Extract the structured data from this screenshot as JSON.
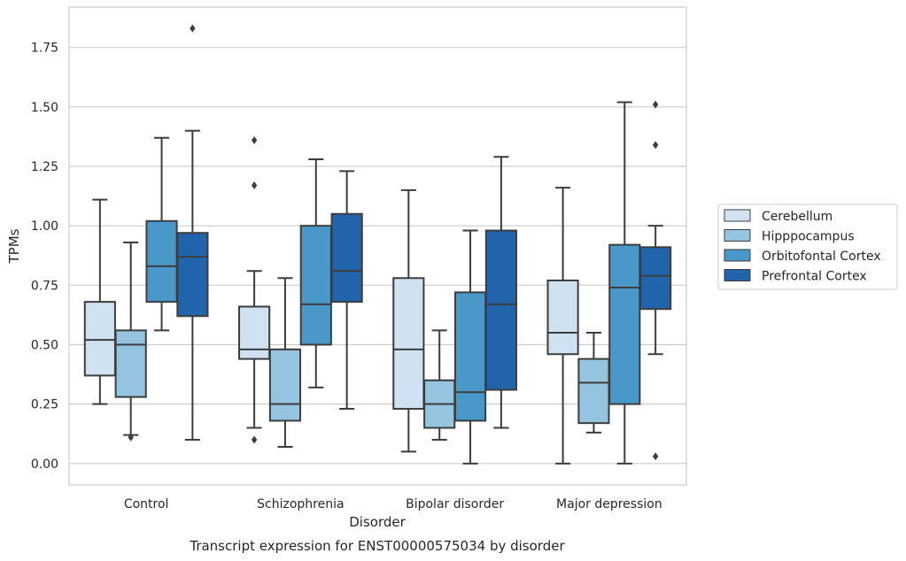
{
  "chart_data": {
    "type": "boxplot",
    "title": "Transcript expression for ENST00000575034 by disorder",
    "xlabel": "Disorder",
    "ylabel": "TPMs",
    "ylim": [
      -0.09,
      1.92
    ],
    "yticks": [
      0.0,
      0.25,
      0.5,
      0.75,
      1.0,
      1.25,
      1.5,
      1.75
    ],
    "ytick_labels": [
      "0.00",
      "0.25",
      "0.50",
      "0.75",
      "1.00",
      "1.25",
      "1.50",
      "1.75"
    ],
    "grid": "horizontal",
    "legend_placement": "right",
    "categories": [
      "Control",
      "Schizophrenia",
      "Bipolar disorder",
      "Major depression"
    ],
    "series": [
      {
        "name": "Cerebellum",
        "color": "#d0e1f2",
        "boxes": [
          {
            "whislo": 0.25,
            "q1": 0.37,
            "med": 0.52,
            "q3": 0.68,
            "whishi": 1.11,
            "fliers": []
          },
          {
            "whislo": 0.15,
            "q1": 0.44,
            "med": 0.48,
            "q3": 0.66,
            "whishi": 0.81,
            "fliers": [
              0.1,
              1.17,
              1.36
            ]
          },
          {
            "whislo": 0.05,
            "q1": 0.23,
            "med": 0.48,
            "q3": 0.78,
            "whishi": 1.15,
            "fliers": []
          },
          {
            "whislo": 0.0,
            "q1": 0.46,
            "med": 0.55,
            "q3": 0.77,
            "whishi": 1.16,
            "fliers": []
          }
        ]
      },
      {
        "name": "Hipppocampus",
        "color": "#94c4df",
        "boxes": [
          {
            "whislo": 0.12,
            "q1": 0.28,
            "med": 0.5,
            "q3": 0.56,
            "whishi": 0.93,
            "fliers": [
              0.11
            ]
          },
          {
            "whislo": 0.07,
            "q1": 0.18,
            "med": 0.25,
            "q3": 0.48,
            "whishi": 0.78,
            "fliers": []
          },
          {
            "whislo": 0.1,
            "q1": 0.15,
            "med": 0.25,
            "q3": 0.35,
            "whishi": 0.56,
            "fliers": []
          },
          {
            "whislo": 0.13,
            "q1": 0.17,
            "med": 0.34,
            "q3": 0.44,
            "whishi": 0.55,
            "fliers": []
          }
        ]
      },
      {
        "name": "Orbitofontal Cortex",
        "color": "#4a98c9",
        "boxes": [
          {
            "whislo": 0.56,
            "q1": 0.68,
            "med": 0.83,
            "q3": 1.02,
            "whishi": 1.37,
            "fliers": []
          },
          {
            "whislo": 0.32,
            "q1": 0.5,
            "med": 0.67,
            "q3": 1.0,
            "whishi": 1.28,
            "fliers": []
          },
          {
            "whislo": 0.0,
            "q1": 0.18,
            "med": 0.3,
            "q3": 0.72,
            "whishi": 0.98,
            "fliers": []
          },
          {
            "whislo": 0.0,
            "q1": 0.25,
            "med": 0.74,
            "q3": 0.92,
            "whishi": 1.52,
            "fliers": []
          }
        ]
      },
      {
        "name": "Prefrontal Cortex",
        "color": "#2164ab",
        "boxes": [
          {
            "whislo": 0.1,
            "q1": 0.62,
            "med": 0.87,
            "q3": 0.97,
            "whishi": 1.4,
            "fliers": [
              1.83
            ]
          },
          {
            "whislo": 0.23,
            "q1": 0.68,
            "med": 0.81,
            "q3": 1.05,
            "whishi": 1.23,
            "fliers": []
          },
          {
            "whislo": 0.15,
            "q1": 0.31,
            "med": 0.67,
            "q3": 0.98,
            "whishi": 1.29,
            "fliers": []
          },
          {
            "whislo": 0.46,
            "q1": 0.65,
            "med": 0.79,
            "q3": 0.91,
            "whishi": 1.0,
            "fliers": [
              0.03,
              1.34,
              1.51
            ]
          }
        ]
      }
    ]
  }
}
